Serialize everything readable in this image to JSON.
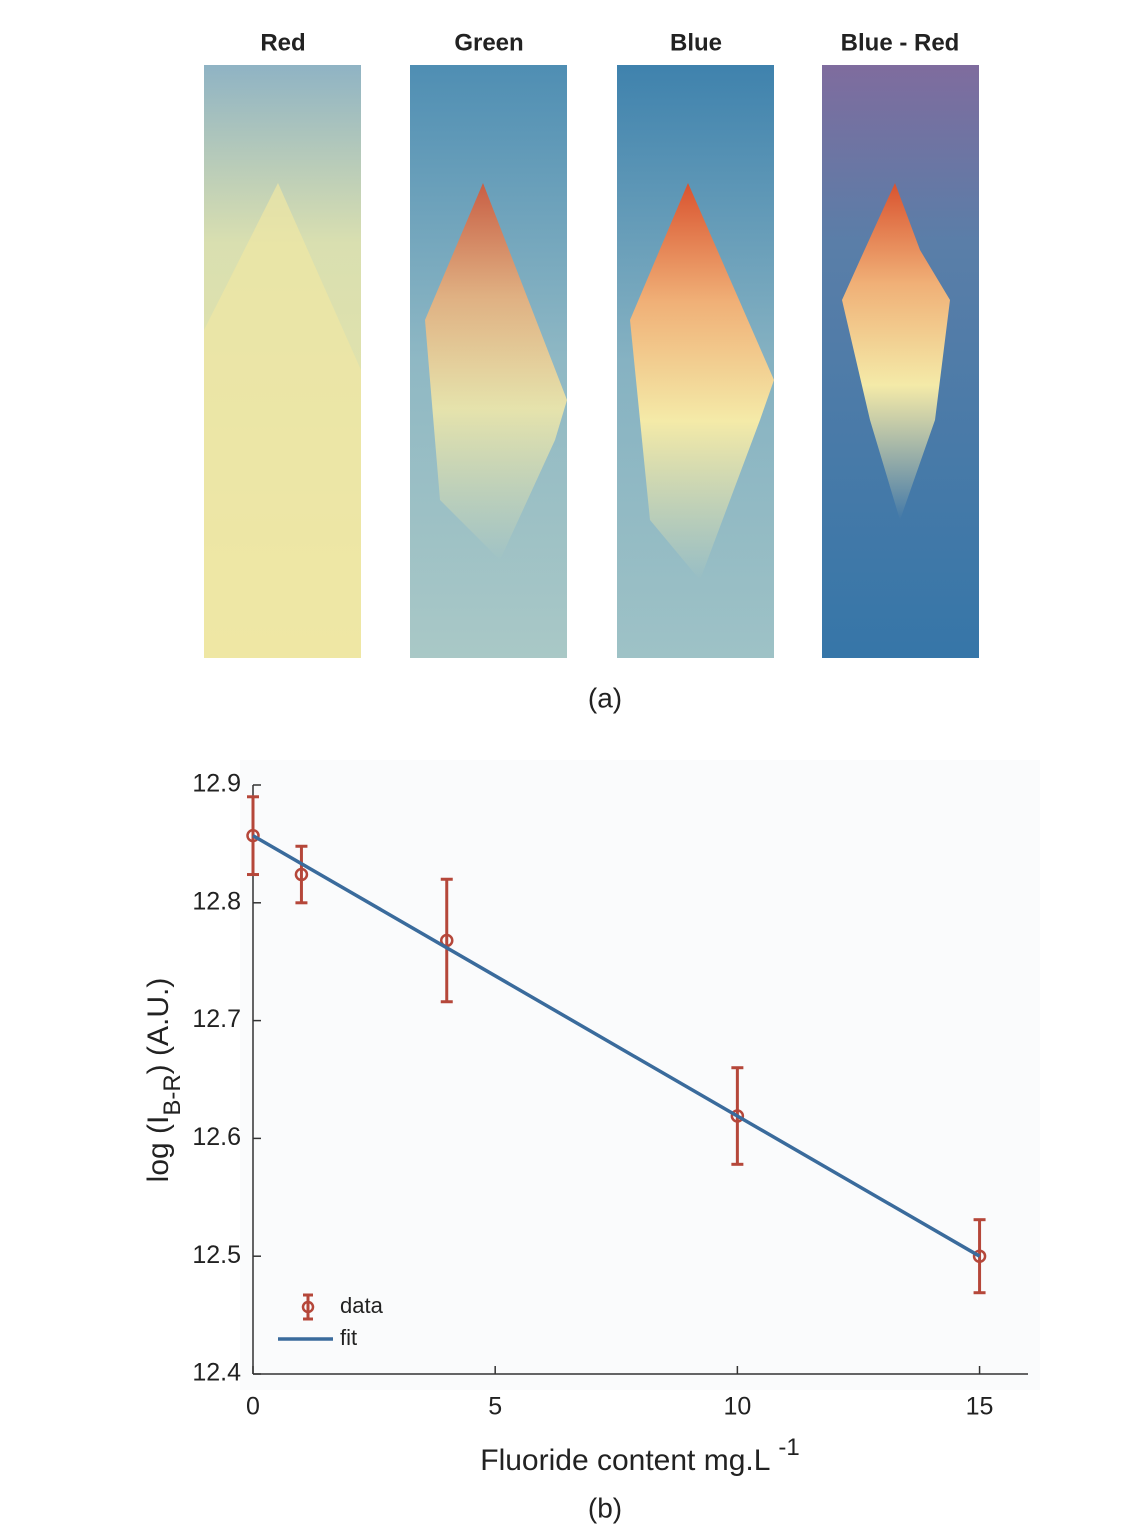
{
  "panels": [
    {
      "title": "Red"
    },
    {
      "title": "Green"
    },
    {
      "title": "Blue"
    },
    {
      "title": "Blue - Red"
    }
  ],
  "captions": [
    "(a)",
    "(b)"
  ],
  "chart_data": {
    "type": "errorbar",
    "xlabel": [
      "Fluoride content mg.L",
      "-1"
    ],
    "ylabel": [
      "log (I",
      "B-R",
      ") (A.U.)"
    ],
    "xlim": [
      0,
      16
    ],
    "ylim": [
      12.4,
      12.9
    ],
    "xticks": [
      0,
      5,
      10,
      15
    ],
    "yticks": [
      12.4,
      12.5,
      12.6,
      12.7,
      12.8,
      12.9
    ],
    "legend": "lower left",
    "series": [
      {
        "name": "data",
        "type": "errorbar",
        "color": "#b5473a",
        "x": [
          0,
          1,
          4,
          10,
          15
        ],
        "values": [
          12.857,
          12.824,
          12.768,
          12.619,
          12.5
        ],
        "errors": [
          0.033,
          0.024,
          0.052,
          0.041,
          0.031
        ]
      },
      {
        "name": "fit",
        "type": "line",
        "color": "#3a6b9c",
        "x": [
          0,
          15
        ],
        "values": [
          12.857,
          12.5
        ]
      }
    ]
  }
}
